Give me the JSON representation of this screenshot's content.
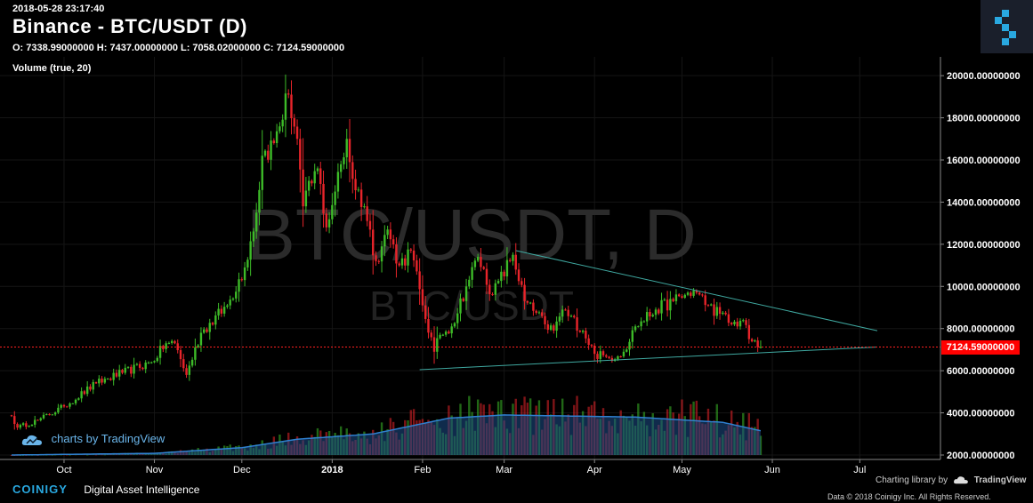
{
  "header": {
    "timestamp": "2018-05-28 23:17:40",
    "title": "Binance - BTC/USDT (D)",
    "ohlc": "O: 7338.99000000 H: 7437.00000000 L: 7058.02000000 C: 7124.59000000",
    "volume_indicator": "Volume (true, 20)"
  },
  "watermark": {
    "big": "BTC/USDT, D",
    "small": "BTC/USDT"
  },
  "badge": {
    "label": "charts by TradingView"
  },
  "footer": {
    "brand": "COINIGY",
    "tagline": "Digital Asset Intelligence",
    "charting": "Charting library by",
    "charting_brand": "TradingView",
    "copyright": "Data © 2018  Coinigy Inc. All Rights Reserved."
  },
  "colors": {
    "up": "#3dbb28",
    "down": "#e8242a",
    "trendline": "#3fa8a0",
    "volume_ma": "#2f6fb8",
    "current_price": "#ff0000",
    "brand": "#29a8e0"
  },
  "chart_data": {
    "type": "candlestick",
    "pair": "BTC/USDT",
    "interval": "D",
    "y_axis": {
      "ticks": [
        "2000.00000000",
        "4000.00000000",
        "6000.00000000",
        "8000.00000000",
        "10000.00000000",
        "12000.00000000",
        "14000.00000000",
        "16000.00000000",
        "18000.00000000",
        "20000.00000000"
      ],
      "tick_values": [
        2000,
        4000,
        6000,
        8000,
        10000,
        12000,
        14000,
        16000,
        18000,
        20000
      ]
    },
    "x_axis": {
      "labels": [
        "Oct",
        "Nov",
        "Dec",
        "2018",
        "Feb",
        "Mar",
        "Apr",
        "May",
        "Jun",
        "Jul"
      ]
    },
    "current_price": 7124.59,
    "current_price_label": "7124.59000000",
    "start_date": "2017-09-13",
    "close_anchors": [
      [
        "2017-09-13",
        3850
      ],
      [
        "2017-09-15",
        3300
      ],
      [
        "2017-09-22",
        3650
      ],
      [
        "2017-10-01",
        4300
      ],
      [
        "2017-10-12",
        5400
      ],
      [
        "2017-10-21",
        5900
      ],
      [
        "2017-10-31",
        6400
      ],
      [
        "2017-11-05",
        7300
      ],
      [
        "2017-11-08",
        7300
      ],
      [
        "2017-11-12",
        5800
      ],
      [
        "2017-11-17",
        7800
      ],
      [
        "2017-11-26",
        9100
      ],
      [
        "2017-12-02",
        10900
      ],
      [
        "2017-12-06",
        13500
      ],
      [
        "2017-12-08",
        16200
      ],
      [
        "2017-12-12",
        16800
      ],
      [
        "2017-12-17",
        19100
      ],
      [
        "2017-12-20",
        17000
      ],
      [
        "2017-12-22",
        13800
      ],
      [
        "2017-12-27",
        15600
      ],
      [
        "2017-12-30",
        12800
      ],
      [
        "2018-01-02",
        14500
      ],
      [
        "2018-01-06",
        17000
      ],
      [
        "2018-01-08",
        15100
      ],
      [
        "2018-01-12",
        13800
      ],
      [
        "2018-01-16",
        11200
      ],
      [
        "2018-01-20",
        12700
      ],
      [
        "2018-01-24",
        11000
      ],
      [
        "2018-01-28",
        11700
      ],
      [
        "2018-02-01",
        9100
      ],
      [
        "2018-02-05",
        6900
      ],
      [
        "2018-02-07",
        7700
      ],
      [
        "2018-02-11",
        8100
      ],
      [
        "2018-02-16",
        10000
      ],
      [
        "2018-02-20",
        11400
      ],
      [
        "2018-02-25",
        9600
      ],
      [
        "2018-03-04",
        11500
      ],
      [
        "2018-03-08",
        9300
      ],
      [
        "2018-03-15",
        8200
      ],
      [
        "2018-03-18",
        7900
      ],
      [
        "2018-03-21",
        8900
      ],
      [
        "2018-03-28",
        7900
      ],
      [
        "2018-04-01",
        6800
      ],
      [
        "2018-04-06",
        6600
      ],
      [
        "2018-04-11",
        6900
      ],
      [
        "2018-04-15",
        8100
      ],
      [
        "2018-04-22",
        8900
      ],
      [
        "2018-04-28",
        9300
      ],
      [
        "2018-05-05",
        9800
      ],
      [
        "2018-05-10",
        9100
      ],
      [
        "2018-05-14",
        8700
      ],
      [
        "2018-05-18",
        8200
      ],
      [
        "2018-05-22",
        8400
      ],
      [
        "2018-05-24",
        7500
      ],
      [
        "2018-05-28",
        7124.59
      ]
    ],
    "volume_ma_anchors": [
      [
        "2017-09-13",
        2000
      ],
      [
        "2017-11-01",
        2080
      ],
      [
        "2017-12-01",
        2350
      ],
      [
        "2017-12-20",
        2750
      ],
      [
        "2018-01-15",
        3000
      ],
      [
        "2018-02-10",
        3750
      ],
      [
        "2018-03-01",
        3900
      ],
      [
        "2018-04-15",
        3800
      ],
      [
        "2018-05-15",
        3550
      ],
      [
        "2018-05-28",
        3150
      ]
    ],
    "trendlines": [
      {
        "from": [
          "2018-03-05",
          11700
        ],
        "to": [
          "2018-07-07",
          7900
        ]
      },
      {
        "from": [
          "2018-01-31",
          6050
        ],
        "to": [
          "2018-07-07",
          7124.59
        ]
      }
    ]
  }
}
